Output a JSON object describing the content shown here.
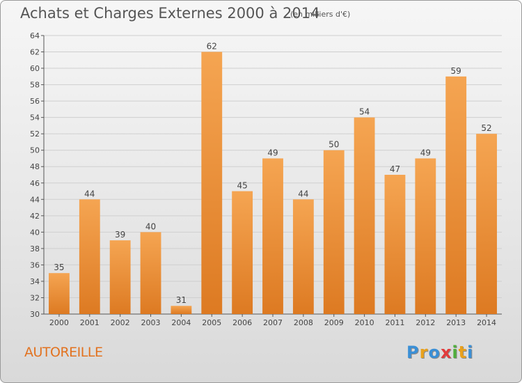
{
  "header": {
    "title": "Achats et Charges Externes 2000 à 2014",
    "unit": "(en milliers d'€)"
  },
  "footer": {
    "town": "AUTOREILLE",
    "brand": [
      "P",
      "r",
      "o",
      "x",
      "i",
      "t",
      "i"
    ],
    "brand_colors": [
      "#3a8fd6",
      "#e9a11c",
      "#3a8fd6",
      "#e23b3b",
      "#4fae3c",
      "#e9a11c",
      "#3a8fd6"
    ]
  },
  "colors": {
    "bar_light": "#f5a552",
    "bar_dark": "#dd7a22",
    "axis": "#555555",
    "grid": "#cfcfcf",
    "town": "#e2721f"
  },
  "chart_data": {
    "type": "bar",
    "title": "Achats et Charges Externes 2000 à 2014",
    "xlabel": "",
    "ylabel": "",
    "categories": [
      "2000",
      "2001",
      "2002",
      "2003",
      "2004",
      "2005",
      "2006",
      "2007",
      "2008",
      "2009",
      "2010",
      "2011",
      "2012",
      "2013",
      "2014"
    ],
    "values": [
      35,
      44,
      39,
      40,
      31,
      62,
      45,
      49,
      44,
      50,
      54,
      47,
      49,
      59,
      52
    ],
    "ylim": [
      30,
      64
    ],
    "yticks": [
      30,
      32,
      34,
      36,
      38,
      40,
      42,
      44,
      46,
      48,
      50,
      52,
      54,
      56,
      58,
      60,
      62,
      64
    ],
    "grid": true,
    "data_labels": true
  }
}
